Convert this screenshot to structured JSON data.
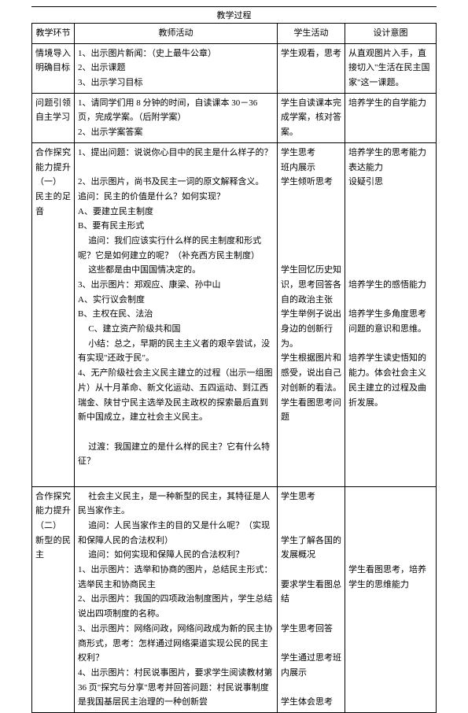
{
  "process_title": "教学过程",
  "headers": {
    "col1": "教学环节",
    "col2": "教师活动",
    "col3": "学生活动",
    "col4": "设计意图"
  },
  "rows": [
    {
      "c1": "情境导入明确目标",
      "c2": [
        {
          "t": "1、出示图片新闻：（史上最牛公章）",
          "cls": ""
        },
        {
          "t": "2、出示课题",
          "cls": ""
        },
        {
          "t": "3、出示学习目标",
          "cls": ""
        }
      ],
      "c3": "学生观看，思考",
      "c4": "从直观图片入手，直接切入\"生活在民主国家\"这一课题。"
    },
    {
      "c1": "问题引领自主学习",
      "c2": [
        {
          "t": "1、请同学们用 8 分钟的时间，自读课本 30－36页，完成学案。（后附学案）",
          "cls": ""
        },
        {
          "t": "2、出示学案答案",
          "cls": ""
        }
      ],
      "c3": "学生自读课本完成学案，核对答案。",
      "c4": "培养学生的自学能力"
    },
    {
      "c1": "合作探究能力提升（一）\n民主的足音",
      "c2": [
        {
          "t": "1、提出问题：说说你心目中的民主是什么样子的？",
          "cls": ""
        },
        {
          "t": "",
          "cls": ""
        },
        {
          "t": "2、出示图片，尚书及民主一词的原文解释含义。",
          "cls": ""
        },
        {
          "t": "追问：民主的价值是什么？如何实现？",
          "cls": ""
        },
        {
          "t": "A、要建立民主制度",
          "cls": ""
        },
        {
          "t": "B、要有民主形式",
          "cls": ""
        },
        {
          "t": "追问：我们应该实行什么样的民主制度和形式呢？它是如何建立的呢？（补充西方民主制度）",
          "cls": "indent"
        },
        {
          "t": "这些都是由中国国情决定的。",
          "cls": "indent"
        },
        {
          "t": "3、出示图片：郑观应、康梁、孙中山",
          "cls": ""
        },
        {
          "t": "A、实行议会制度",
          "cls": ""
        },
        {
          "t": "B、主权在民、法治",
          "cls": ""
        },
        {
          "t": "C、建立资产阶级共和国",
          "cls": "indent"
        },
        {
          "t": "小结：总之，早期的民主主义者的艰辛尝试，没有实现\"还政于民\"。",
          "cls": "indent"
        },
        {
          "t": "4、无产阶级社会主义民主建立的过程（出示一组图片）从十月革命、新文化运动、五四运动、到江西瑞金、陕甘宁民主选举及民主政权的探索最后直到新中国成立，建立社会主义民主。",
          "cls": ""
        },
        {
          "t": "",
          "cls": ""
        },
        {
          "t": "过渡：我国建立的是什么样的民主？它有什么特征？",
          "cls": "indent"
        },
        {
          "t": "",
          "cls": ""
        }
      ],
      "c3": "学生思考\n班内展示\n学生倾听思考\n\n\n\n\n\n学生回忆历史知识，思考回答各自的政治主张\n学生举例子说出身边的创新行为。\n学生根据图片和感受，说出自己对创新的看法。\n学生看图思考问题",
      "c4": "培养学生的思考能力表达能力\n设疑引思\n\n\n\n\n\n\n培养学生的感悟能力\n\n培养学生多角度思考问题的意识和思维。\n\n培养学生读史悟知的能力。体会社会主义民主建立的过程及曲折发展。"
    },
    {
      "c1": "合作探究能力提升（二）\n新型的民主",
      "c2": [
        {
          "t": "社会主义民主，是一种新型的民主，其特征是人民当家作主。",
          "cls": "indent"
        },
        {
          "t": "追问：人民当家作主的目的又是什么呢？（实现和保障人民的合法权利）",
          "cls": "indent"
        },
        {
          "t": "追问：如何实现和保障人民的合法权利？",
          "cls": "indent"
        },
        {
          "t": "1、出示图片：选举和协商的图片，总结民主形式：选举民主和协商民主",
          "cls": ""
        },
        {
          "t": "2、出示图片：我国的四项政治制度图片，学生总结说出四项制度的名称。",
          "cls": ""
        },
        {
          "t": "3、出示图片：网络问政，网络问政成为新的民主协商形式，思考：怎样通过网络渠道实现公民的民主权利？",
          "cls": ""
        },
        {
          "t": "4、出示图片：村民说事图片，要求学生阅读教材第 36 页\"探究与分享\"思考并回答问题：村民说事制度是我国基层民主治理的一种创新尝",
          "cls": ""
        }
      ],
      "c3": "学生思考\n\n\n学生了解各国的发展概况\n\n要求学生看图总结\n\n学生思考回答\n\n学生通过思考班内展示\n\n学生体会思考",
      "c4": "\n\n\n\n\n学生看图思考，培养学生的思维能力"
    }
  ]
}
